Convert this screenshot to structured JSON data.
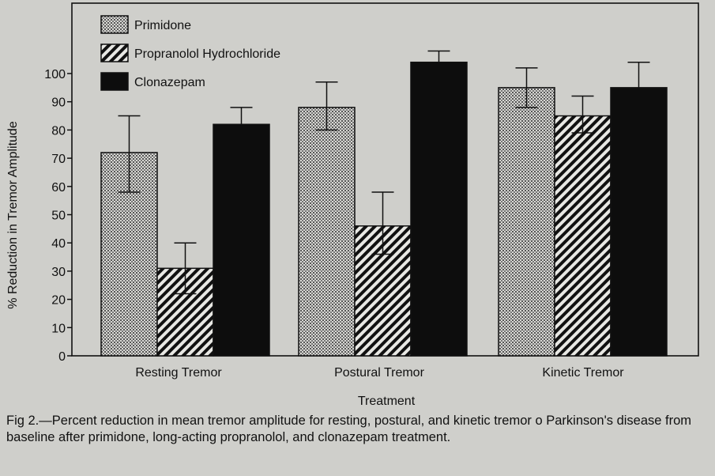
{
  "chart_data": {
    "type": "bar",
    "categories": [
      "Resting Tremor",
      "Postural Tremor",
      "Kinetic Tremor"
    ],
    "series": [
      {
        "name": "Primidone",
        "values": [
          72,
          88,
          95
        ],
        "error_low": [
          58,
          80,
          88
        ],
        "error_high": [
          85,
          97,
          102
        ],
        "pattern": "dots"
      },
      {
        "name": "Propranolol Hydrochloride",
        "values": [
          31,
          46,
          85
        ],
        "error_low": [
          22,
          36,
          79
        ],
        "error_high": [
          40,
          58,
          92
        ],
        "pattern": "hatch"
      },
      {
        "name": "Clonazepam",
        "values": [
          82,
          104,
          95
        ],
        "error_low": [
          82,
          104,
          95
        ],
        "error_high": [
          88,
          108,
          104
        ],
        "pattern": "solid"
      }
    ],
    "xlabel": "Treatment",
    "ylabel": "% Reduction in Tremor Amplitude",
    "ylim": [
      0,
      110
    ],
    "yticks": [
      0,
      10,
      20,
      30,
      40,
      50,
      60,
      70,
      80,
      90,
      100
    ],
    "legend": "top-left",
    "grid": false
  },
  "caption": "Fig 2.—Percent reduction in mean tremor amplitude for resting, postural, and kinetic tremor o Parkinson's disease from baseline after primidone, long-acting propranolol, and clonazepam treatment."
}
